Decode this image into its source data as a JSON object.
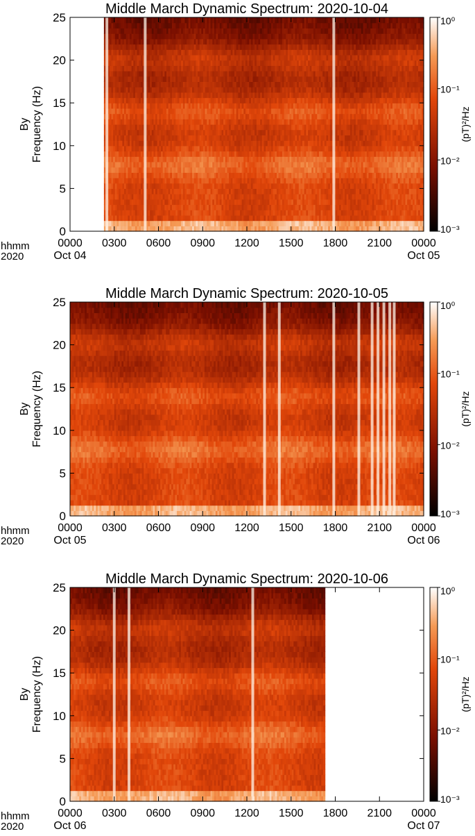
{
  "chart_data": [
    {
      "type": "heatmap",
      "title": "Middle March Dynamic Spectrum:   2020-10-04",
      "ylabel_line1": "By",
      "ylabel_line2": "Frequency (Hz)",
      "x_corner_top": "hhmm",
      "x_corner_bottom": "2020",
      "x_ticks": [
        "0000",
        "0300",
        "0600",
        "0900",
        "1200",
        "1500",
        "1800",
        "2100",
        "0000"
      ],
      "x_tick_hours": [
        0,
        3,
        6,
        9,
        12,
        15,
        18,
        21,
        24
      ],
      "date_start": "Oct 04",
      "date_end": "Oct 05",
      "xlim": [
        0,
        24
      ],
      "y_ticks": [
        "0",
        "5",
        "10",
        "15",
        "20",
        "25"
      ],
      "y_tick_values": [
        0,
        5,
        10,
        15,
        20,
        25
      ],
      "ylim": [
        0,
        25
      ],
      "colorbar": {
        "label": "(pT)²/Hz",
        "scale": "log",
        "range": [
          0.001,
          1
        ],
        "ticks": [
          "10⁰",
          "10⁻¹",
          "10⁻²",
          "10⁻³"
        ],
        "tick_values": [
          1,
          0.1,
          0.01,
          0.001
        ]
      },
      "data_hours": [
        2.3,
        24
      ],
      "bands_hz": [
        7.8,
        14.1,
        20.3
      ],
      "bright_events_hours": [
        2.5,
        5.1,
        17.9
      ],
      "colors": {
        "low": "#000000",
        "mid": "#e2470a",
        "high": "#ffffff"
      }
    },
    {
      "type": "heatmap",
      "title": "Middle March Dynamic Spectrum:   2020-10-05",
      "ylabel_line1": "By",
      "ylabel_line2": "Frequency (Hz)",
      "x_corner_top": "hhmm",
      "x_corner_bottom": "2020",
      "x_ticks": [
        "0000",
        "0300",
        "0600",
        "0900",
        "1200",
        "1500",
        "1800",
        "2100",
        "0000"
      ],
      "x_tick_hours": [
        0,
        3,
        6,
        9,
        12,
        15,
        18,
        21,
        24
      ],
      "date_start": "Oct 05",
      "date_end": "Oct 06",
      "xlim": [
        0,
        24
      ],
      "y_ticks": [
        "0",
        "5",
        "10",
        "15",
        "20",
        "25"
      ],
      "y_tick_values": [
        0,
        5,
        10,
        15,
        20,
        25
      ],
      "ylim": [
        0,
        25
      ],
      "colorbar": {
        "label": "(pT)²/Hz",
        "scale": "log",
        "range": [
          0.001,
          1
        ],
        "ticks": [
          "10⁰",
          "10⁻¹",
          "10⁻²",
          "10⁻³"
        ],
        "tick_values": [
          1,
          0.1,
          0.01,
          0.001
        ]
      },
      "data_hours": [
        0,
        24
      ],
      "bands_hz": [
        7.8,
        14.1,
        20.3
      ],
      "bright_events_hours": [
        13.2,
        14.2,
        17.9,
        19.6,
        20.5,
        20.9,
        21.3,
        21.7,
        22.0
      ],
      "colors": {
        "low": "#000000",
        "mid": "#e2470a",
        "high": "#ffffff"
      }
    },
    {
      "type": "heatmap",
      "title": "Middle March Dynamic Spectrum:   2020-10-06",
      "ylabel_line1": "By",
      "ylabel_line2": "Frequency (Hz)",
      "x_corner_top": "hhmm",
      "x_corner_bottom": "2020",
      "x_ticks": [
        "0000",
        "0300",
        "0600",
        "0900",
        "1200",
        "1500",
        "1800",
        "2100",
        "0000"
      ],
      "x_tick_hours": [
        0,
        3,
        6,
        9,
        12,
        15,
        18,
        21,
        24
      ],
      "date_start": "Oct 06",
      "date_end": "Oct 07",
      "xlim": [
        0,
        24
      ],
      "y_ticks": [
        "0",
        "5",
        "10",
        "15",
        "20",
        "25"
      ],
      "y_tick_values": [
        0,
        5,
        10,
        15,
        20,
        25
      ],
      "ylim": [
        0,
        25
      ],
      "colorbar": {
        "label": "(pT)²/Hz",
        "scale": "log",
        "range": [
          0.001,
          1
        ],
        "ticks": [
          "10⁰",
          "10⁻¹",
          "10⁻²",
          "10⁻³"
        ],
        "tick_values": [
          1,
          0.1,
          0.01,
          0.001
        ]
      },
      "data_hours": [
        0,
        17.3
      ],
      "bands_hz": [
        7.8,
        14.1,
        20.3
      ],
      "bright_events_hours": [
        3.0,
        4.0,
        12.4
      ],
      "colors": {
        "low": "#000000",
        "mid": "#e2470a",
        "high": "#ffffff"
      }
    }
  ]
}
